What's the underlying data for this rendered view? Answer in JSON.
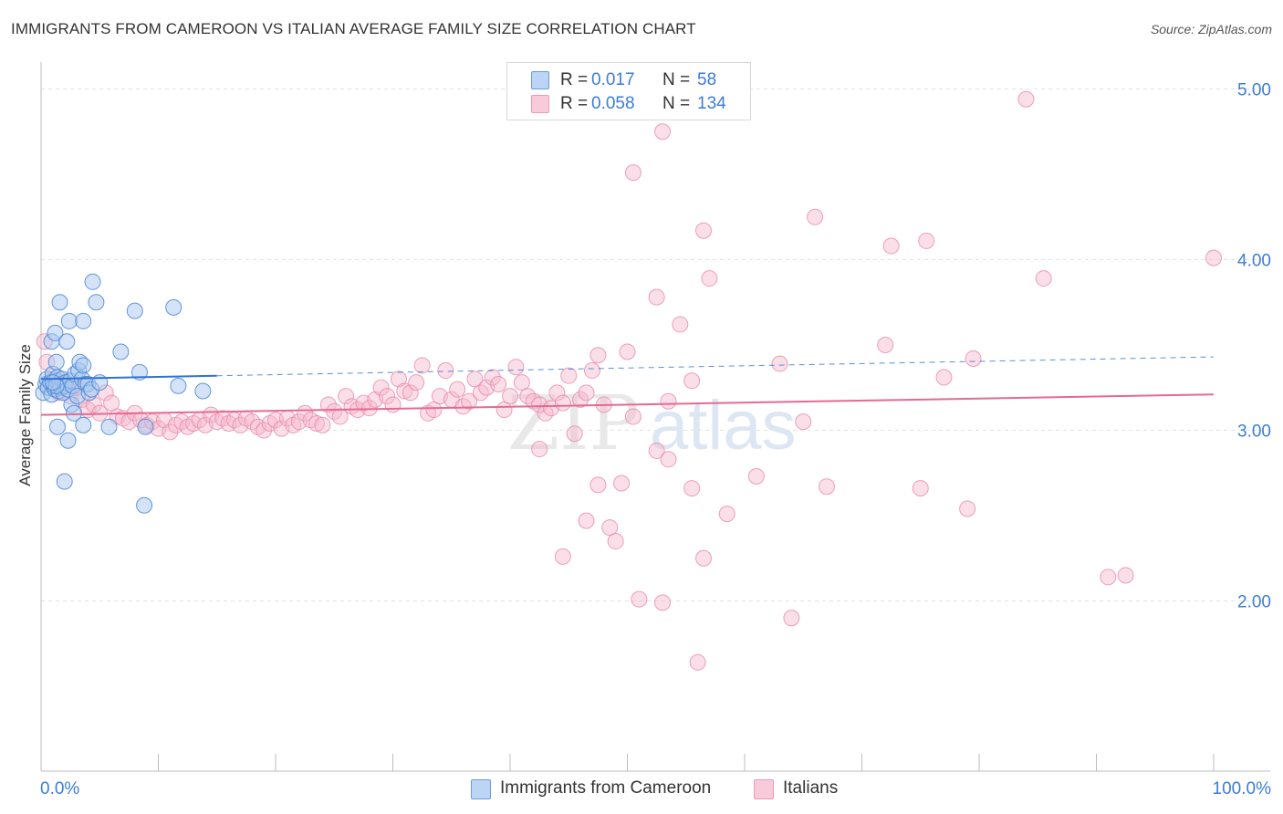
{
  "title": "IMMIGRANTS FROM CAMEROON VS ITALIAN AVERAGE FAMILY SIZE CORRELATION CHART",
  "source": "Source: ZipAtlas.com",
  "stats": {
    "rows": [
      {
        "r_label": "R =",
        "r_value": "0.017",
        "n_label": "N =",
        "n_value": "58"
      },
      {
        "r_label": "R =",
        "r_value": "0.058",
        "n_label": "N =",
        "n_value": "134"
      }
    ]
  },
  "legend": {
    "items": [
      {
        "label": "Immigrants from Cameroon"
      },
      {
        "label": "Italians"
      }
    ]
  },
  "watermark": {
    "zip": "ZIP",
    "atlas": "atlas"
  },
  "colors": {
    "cameroon_fill": "#a9c8f0",
    "cameroon_stroke": "#4a86d6",
    "cameroon_line": "#2f73cf",
    "italian_fill": "#f6b7cb",
    "italian_stroke": "#e98aa9",
    "italian_line": "#e46a94",
    "value_text": "#3b7dd8",
    "grid": "#e2e2e2"
  },
  "chart_data": {
    "type": "scatter",
    "title": "IMMIGRANTS FROM CAMEROON VS ITALIAN AVERAGE FAMILY SIZE CORRELATION CHART",
    "xlabel": "",
    "ylabel": "Average Family Size",
    "xlim": [
      0,
      100
    ],
    "ylim": [
      1.0,
      5.1
    ],
    "x_tick_labels": [
      "0.0%",
      "100.0%"
    ],
    "y_ticks": [
      2.0,
      3.0,
      4.0,
      5.0
    ],
    "y_tick_labels": [
      "2.00",
      "3.00",
      "4.00",
      "5.00"
    ],
    "grid": "horizontal dashed",
    "legend_position": "bottom-center",
    "series": [
      {
        "name": "Immigrants from Cameroon",
        "r": 0.017,
        "n": 58,
        "trend": {
          "x_start": 0,
          "y_start": 3.3,
          "x_solid_end": 15,
          "x_end": 100,
          "y_end": 3.43
        },
        "points": [
          [
            0.2,
            3.22
          ],
          [
            0.4,
            3.27
          ],
          [
            0.5,
            3.3
          ],
          [
            0.6,
            3.25
          ],
          [
            0.8,
            3.28
          ],
          [
            0.9,
            3.21
          ],
          [
            1.0,
            3.33
          ],
          [
            1.1,
            3.26
          ],
          [
            1.2,
            3.24
          ],
          [
            1.3,
            3.29
          ],
          [
            1.4,
            3.31
          ],
          [
            1.5,
            3.23
          ],
          [
            1.6,
            3.27
          ],
          [
            1.7,
            3.25
          ],
          [
            1.8,
            3.3
          ],
          [
            1.9,
            3.22
          ],
          [
            2.0,
            3.26
          ],
          [
            2.1,
            3.28
          ],
          [
            2.3,
            3.24
          ],
          [
            2.5,
            3.29
          ],
          [
            2.7,
            3.26
          ],
          [
            2.9,
            3.33
          ],
          [
            3.2,
            3.35
          ],
          [
            3.5,
            3.3
          ],
          [
            3.8,
            3.27
          ],
          [
            0.9,
            3.52
          ],
          [
            1.2,
            3.57
          ],
          [
            1.3,
            3.4
          ],
          [
            1.6,
            3.75
          ],
          [
            2.2,
            3.52
          ],
          [
            2.4,
            3.64
          ],
          [
            2.6,
            3.15
          ],
          [
            2.8,
            3.1
          ],
          [
            3.1,
            3.2
          ],
          [
            3.3,
            3.4
          ],
          [
            3.6,
            3.64
          ],
          [
            3.6,
            3.38
          ],
          [
            4.0,
            3.27
          ],
          [
            4.1,
            3.22
          ],
          [
            4.3,
            3.24
          ],
          [
            4.4,
            3.87
          ],
          [
            4.7,
            3.75
          ],
          [
            5.0,
            3.28
          ],
          [
            1.4,
            3.02
          ],
          [
            2.3,
            2.94
          ],
          [
            3.6,
            3.03
          ],
          [
            5.8,
            3.02
          ],
          [
            6.8,
            3.46
          ],
          [
            8.0,
            3.7
          ],
          [
            8.4,
            3.34
          ],
          [
            8.9,
            3.02
          ],
          [
            11.3,
            3.72
          ],
          [
            11.7,
            3.26
          ],
          [
            13.8,
            3.23
          ],
          [
            1.3,
            3.26
          ],
          [
            2.0,
            2.7
          ],
          [
            8.8,
            2.56
          ],
          [
            1.0,
            3.28
          ]
        ]
      },
      {
        "name": "Italians",
        "r": 0.058,
        "n": 134,
        "trend": {
          "x_start": 0,
          "y_start": 3.09,
          "x_end": 100,
          "y_end": 3.21
        },
        "points": [
          [
            0.3,
            3.52
          ],
          [
            0.5,
            3.4
          ],
          [
            1.0,
            3.3
          ],
          [
            1.5,
            3.22
          ],
          [
            2.0,
            3.28
          ],
          [
            2.5,
            3.2
          ],
          [
            3.0,
            3.25
          ],
          [
            3.5,
            3.18
          ],
          [
            4.0,
            3.12
          ],
          [
            4.5,
            3.15
          ],
          [
            5.0,
            3.1
          ],
          [
            5.5,
            3.22
          ],
          [
            6.0,
            3.16
          ],
          [
            6.5,
            3.08
          ],
          [
            7.0,
            3.07
          ],
          [
            7.5,
            3.05
          ],
          [
            8.0,
            3.1
          ],
          [
            8.5,
            3.06
          ],
          [
            9.0,
            3.03
          ],
          [
            9.5,
            3.05
          ],
          [
            10.0,
            3.01
          ],
          [
            10.5,
            3.06
          ],
          [
            11.0,
            2.99
          ],
          [
            11.5,
            3.03
          ],
          [
            12.0,
            3.05
          ],
          [
            12.5,
            3.02
          ],
          [
            13.0,
            3.04
          ],
          [
            13.5,
            3.06
          ],
          [
            14.0,
            3.03
          ],
          [
            14.5,
            3.09
          ],
          [
            15.0,
            3.05
          ],
          [
            15.5,
            3.07
          ],
          [
            16.0,
            3.04
          ],
          [
            16.5,
            3.06
          ],
          [
            17.0,
            3.03
          ],
          [
            17.5,
            3.07
          ],
          [
            18.0,
            3.05
          ],
          [
            18.5,
            3.02
          ],
          [
            19.0,
            3.0
          ],
          [
            19.5,
            3.04
          ],
          [
            20.0,
            3.06
          ],
          [
            20.5,
            3.01
          ],
          [
            21.0,
            3.07
          ],
          [
            21.5,
            3.03
          ],
          [
            22.0,
            3.05
          ],
          [
            22.5,
            3.1
          ],
          [
            23.0,
            3.06
          ],
          [
            23.5,
            3.04
          ],
          [
            24.0,
            3.03
          ],
          [
            24.5,
            3.15
          ],
          [
            25.0,
            3.11
          ],
          [
            25.5,
            3.08
          ],
          [
            26.0,
            3.2
          ],
          [
            26.5,
            3.14
          ],
          [
            27.0,
            3.12
          ],
          [
            27.5,
            3.16
          ],
          [
            28.0,
            3.13
          ],
          [
            28.5,
            3.18
          ],
          [
            29.0,
            3.25
          ],
          [
            29.5,
            3.2
          ],
          [
            30.0,
            3.15
          ],
          [
            30.5,
            3.3
          ],
          [
            31.0,
            3.23
          ],
          [
            31.5,
            3.22
          ],
          [
            32.0,
            3.28
          ],
          [
            32.5,
            3.38
          ],
          [
            33.0,
            3.1
          ],
          [
            33.5,
            3.12
          ],
          [
            34.0,
            3.2
          ],
          [
            34.5,
            3.35
          ],
          [
            35.0,
            3.18
          ],
          [
            35.5,
            3.24
          ],
          [
            36.0,
            3.14
          ],
          [
            36.5,
            3.17
          ],
          [
            37.0,
            3.3
          ],
          [
            37.5,
            3.22
          ],
          [
            38.0,
            3.25
          ],
          [
            38.5,
            3.31
          ],
          [
            39.0,
            3.27
          ],
          [
            39.5,
            3.12
          ],
          [
            40.0,
            3.2
          ],
          [
            40.5,
            3.37
          ],
          [
            41.0,
            3.28
          ],
          [
            41.5,
            3.2
          ],
          [
            42.0,
            3.17
          ],
          [
            42.5,
            3.15
          ],
          [
            43.0,
            3.1
          ],
          [
            43.5,
            3.13
          ],
          [
            44.0,
            3.22
          ],
          [
            44.5,
            3.16
          ],
          [
            45.0,
            3.32
          ],
          [
            46.0,
            3.18
          ],
          [
            46.5,
            3.22
          ],
          [
            47.0,
            3.35
          ],
          [
            47.5,
            3.44
          ],
          [
            48.0,
            3.15
          ],
          [
            50.0,
            3.46
          ],
          [
            50.5,
            3.08
          ],
          [
            52.5,
            3.78
          ],
          [
            53.5,
            3.17
          ],
          [
            54.5,
            3.62
          ],
          [
            55.5,
            3.29
          ],
          [
            56.5,
            4.17
          ],
          [
            57.0,
            3.89
          ],
          [
            63.0,
            3.39
          ],
          [
            65.0,
            3.05
          ],
          [
            66.0,
            4.25
          ],
          [
            72.0,
            3.5
          ],
          [
            72.5,
            4.08
          ],
          [
            75.5,
            4.11
          ],
          [
            77.0,
            3.31
          ],
          [
            79.5,
            3.42
          ],
          [
            84.0,
            4.94
          ],
          [
            85.5,
            3.89
          ],
          [
            100.0,
            4.01
          ],
          [
            53.0,
            4.75
          ],
          [
            50.5,
            4.51
          ],
          [
            42.5,
            2.89
          ],
          [
            44.5,
            2.26
          ],
          [
            45.5,
            2.98
          ],
          [
            46.5,
            2.47
          ],
          [
            47.5,
            2.68
          ],
          [
            48.5,
            2.43
          ],
          [
            49.0,
            2.35
          ],
          [
            49.5,
            2.69
          ],
          [
            51.0,
            2.01
          ],
          [
            52.5,
            2.88
          ],
          [
            53.0,
            1.99
          ],
          [
            53.5,
            2.83
          ],
          [
            55.5,
            2.66
          ],
          [
            56.0,
            1.64
          ],
          [
            56.5,
            2.25
          ],
          [
            58.5,
            2.51
          ],
          [
            61.0,
            2.73
          ],
          [
            64.0,
            1.9
          ],
          [
            67.0,
            2.67
          ],
          [
            75.0,
            2.66
          ],
          [
            79.0,
            2.54
          ],
          [
            91.0,
            2.14
          ],
          [
            92.5,
            2.15
          ]
        ]
      }
    ]
  }
}
